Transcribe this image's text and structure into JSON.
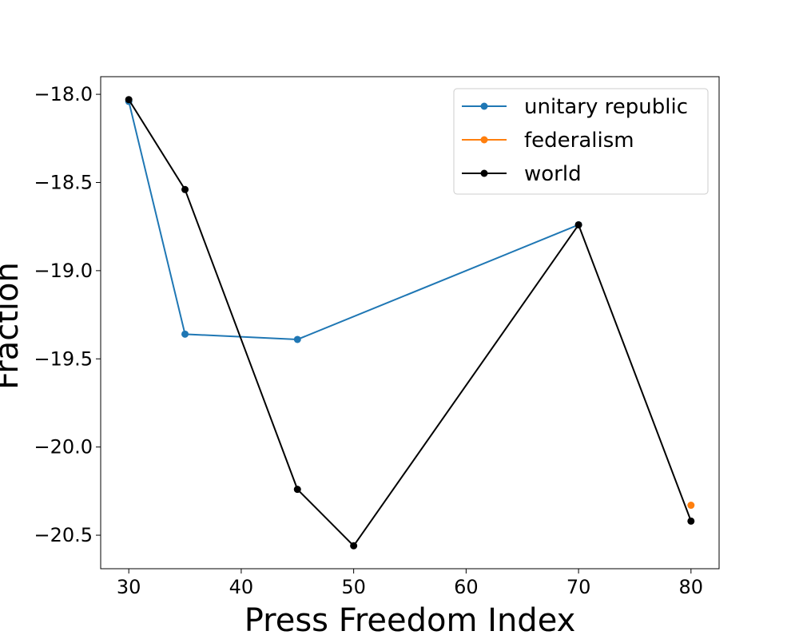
{
  "chart_data": {
    "type": "line",
    "title": "",
    "xlabel": "Press Freedom Index",
    "ylabel": "Fraction",
    "xlim": [
      27.5,
      82.5
    ],
    "ylim": [
      -20.69,
      -17.9
    ],
    "xticks": [
      30,
      40,
      50,
      60,
      70,
      80
    ],
    "yticks": [
      -18.0,
      -18.5,
      -19.0,
      -19.5,
      -20.0,
      -20.5
    ],
    "xtick_labels": [
      "30",
      "40",
      "50",
      "60",
      "70",
      "80"
    ],
    "ytick_labels": [
      "−18.0",
      "−18.5",
      "−19.0",
      "−19.5",
      "−20.0",
      "−20.5"
    ],
    "grid": false,
    "legend_position": "top-right",
    "series": [
      {
        "name": "unitary republic",
        "color": "#1f77b4",
        "x": [
          30,
          35,
          45,
          70
        ],
        "y": [
          -18.04,
          -19.36,
          -19.39,
          -18.74
        ]
      },
      {
        "name": "federalism",
        "color": "#ff7f0e",
        "x": [
          80
        ],
        "y": [
          -20.33
        ]
      },
      {
        "name": "world",
        "color": "#000000",
        "x": [
          30,
          35,
          45,
          50,
          70,
          80
        ],
        "y": [
          -18.03,
          -18.54,
          -20.24,
          -20.56,
          -18.74,
          -20.42
        ]
      }
    ]
  }
}
